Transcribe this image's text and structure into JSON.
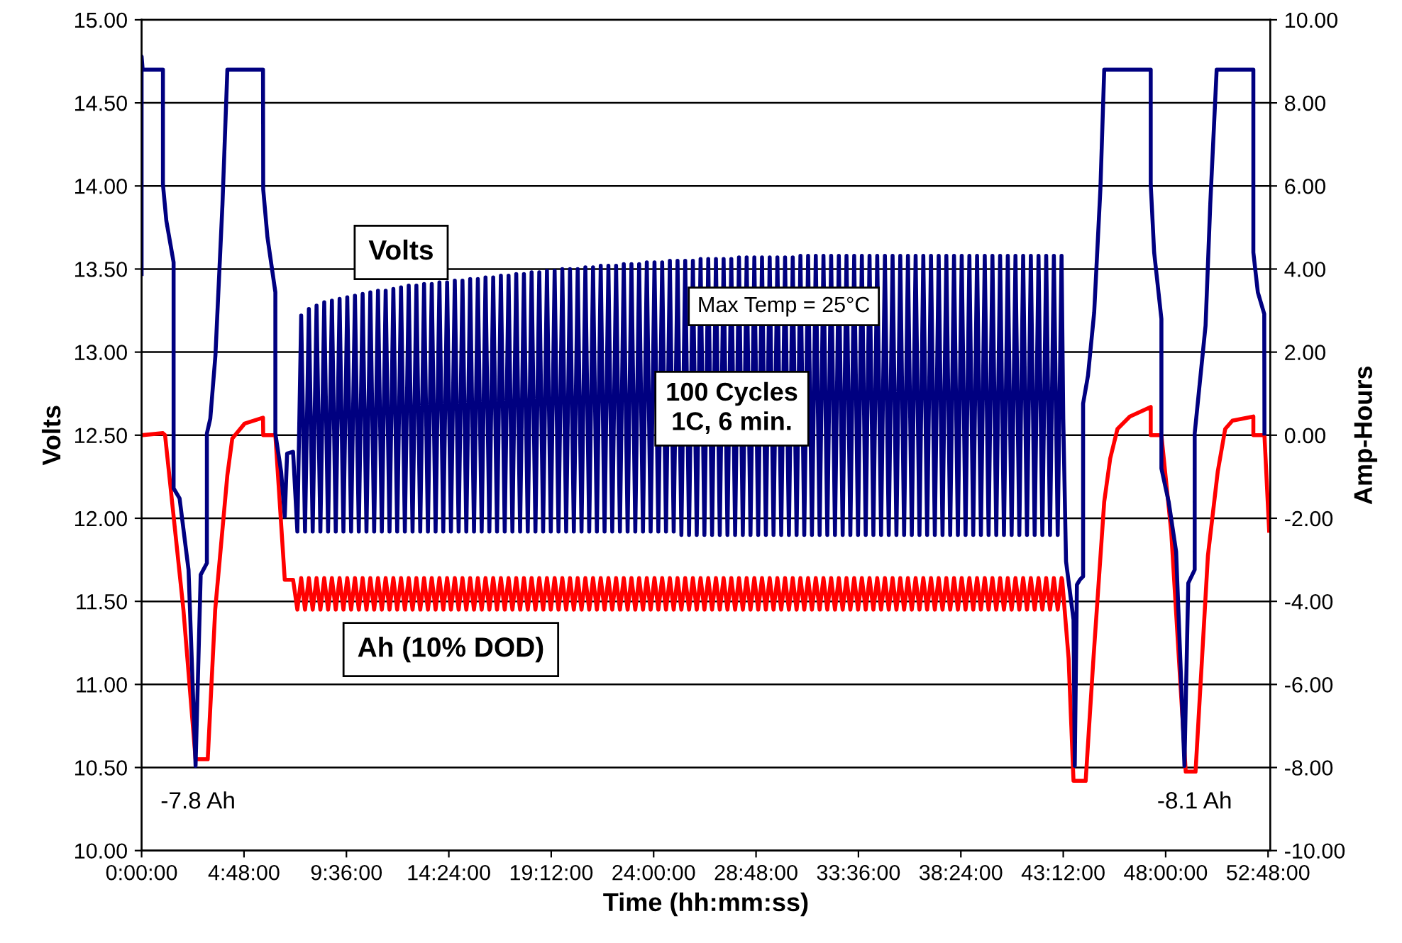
{
  "chart_data": {
    "type": "line",
    "xlabel": "Time (hh:mm:ss)",
    "ylabel": "Volts",
    "y2label": "Amp-Hours",
    "xlim": [
      0,
      52.9
    ],
    "xticks": [
      {
        "value": 0,
        "label": "0:00:00"
      },
      {
        "value": 4.8,
        "label": "4:48:00"
      },
      {
        "value": 9.6,
        "label": "9:36:00"
      },
      {
        "value": 14.4,
        "label": "14:24:00"
      },
      {
        "value": 19.2,
        "label": "19:12:00"
      },
      {
        "value": 24,
        "label": "24:00:00"
      },
      {
        "value": 28.8,
        "label": "28:48:00"
      },
      {
        "value": 33.6,
        "label": "33:36:00"
      },
      {
        "value": 38.4,
        "label": "38:24:00"
      },
      {
        "value": 43.2,
        "label": "43:12:00"
      },
      {
        "value": 48,
        "label": "48:00:00"
      },
      {
        "value": 52.8,
        "label": "52:48:00"
      }
    ],
    "ylim": [
      10,
      15
    ],
    "yticks": [
      {
        "value": 10,
        "label": "10.00"
      },
      {
        "value": 10.5,
        "label": "10.50"
      },
      {
        "value": 11,
        "label": "11.00"
      },
      {
        "value": 11.5,
        "label": "11.50"
      },
      {
        "value": 12,
        "label": "12.00"
      },
      {
        "value": 12.5,
        "label": "12.50"
      },
      {
        "value": 13,
        "label": "13.00"
      },
      {
        "value": 13.5,
        "label": "13.50"
      },
      {
        "value": 14,
        "label": "14.00"
      },
      {
        "value": 14.5,
        "label": "14.50"
      },
      {
        "value": 15,
        "label": "15.00"
      }
    ],
    "y2lim": [
      -10,
      10
    ],
    "y2ticks": [
      {
        "value": -10,
        "label": "-10.00"
      },
      {
        "value": -8,
        "label": "-8.00"
      },
      {
        "value": -6,
        "label": "-6.00"
      },
      {
        "value": -4,
        "label": "-4.00"
      },
      {
        "value": -2,
        "label": "-2.00"
      },
      {
        "value": 0,
        "label": "0.00"
      },
      {
        "value": 2,
        "label": "2.00"
      },
      {
        "value": 4,
        "label": "4.00"
      },
      {
        "value": 6,
        "label": "6.00"
      },
      {
        "value": 8,
        "label": "8.00"
      },
      {
        "value": 10,
        "label": "10.00"
      }
    ],
    "grid": "y",
    "legend": false,
    "marker": "none",
    "line_style": "solid",
    "annotations": [
      "Max Temp = 25°C",
      "100 Cycles\n1C, 6 min.",
      "-7.8 Ah",
      "-8.1 Ah"
    ],
    "series": [
      {
        "name": "Volts",
        "color": "#000080",
        "x": [
          0,
          0,
          0.05,
          1.0,
          1.0,
          1.16,
          1.5,
          1.5,
          1.78,
          2.2,
          2.53,
          2.77,
          3.06,
          3.06,
          3.22,
          3.46,
          3.79,
          4.02,
          5.69,
          5.7,
          5.9,
          6.27,
          6.27,
          6.54,
          6.71,
          6.82,
          7.1,
          7.3,
          7.48,
          7.66,
          7.84,
          8.02,
          8.2,
          8.38,
          8.56,
          8.74,
          8.92,
          9.1,
          9.28,
          9.46,
          9.64,
          9.82,
          10.0,
          10.18,
          10.36,
          10.54,
          10.72,
          10.9,
          11.08,
          11.26,
          11.44,
          11.62,
          11.8,
          11.98,
          12.16,
          12.34,
          12.52,
          12.7,
          12.88,
          13.06,
          13.24,
          13.42,
          13.6,
          13.78,
          13.96,
          14.14,
          14.32,
          14.5,
          14.68,
          14.86,
          15.04,
          15.22,
          15.4,
          15.58,
          15.76,
          15.94,
          16.12,
          16.3,
          16.48,
          16.66,
          16.84,
          17.02,
          17.2,
          17.38,
          17.56,
          17.74,
          17.92,
          18.1,
          18.28,
          18.46,
          18.64,
          18.82,
          19.0,
          19.18,
          19.36,
          19.54,
          19.72,
          19.9,
          20.08,
          20.26,
          20.44,
          20.62,
          20.8,
          20.98,
          21.16,
          21.34,
          21.52,
          21.7,
          21.88,
          22.06,
          22.24,
          22.42,
          22.6,
          22.78,
          22.96,
          23.14,
          23.32,
          23.5,
          23.68,
          23.86,
          24.04,
          24.22,
          24.4,
          24.58,
          24.76,
          24.94,
          25.12,
          25.3,
          25.48,
          25.66,
          25.84,
          26.02,
          26.2,
          26.38,
          26.56,
          26.74,
          26.92,
          27.1,
          27.28,
          27.46,
          27.64,
          27.82,
          28.0,
          28.18,
          28.36,
          28.54,
          28.72,
          28.9,
          29.08,
          29.26,
          29.44,
          29.62,
          29.8,
          29.98,
          30.16,
          30.34,
          30.52,
          30.7,
          30.88,
          31.06,
          31.24,
          31.42,
          31.6,
          31.78,
          31.96,
          32.14,
          32.32,
          32.5,
          32.68,
          32.86,
          33.04,
          33.22,
          33.4,
          33.58,
          33.76,
          33.94,
          34.12,
          34.3,
          34.48,
          34.66,
          34.84,
          35.02,
          35.2,
          35.38,
          35.56,
          35.74,
          35.92,
          36.1,
          36.28,
          36.46,
          36.64,
          36.82,
          37.0,
          37.18,
          37.36,
          37.54,
          37.72,
          37.9,
          38.08,
          38.26,
          38.44,
          38.62,
          38.8,
          38.98,
          39.16,
          39.34,
          39.52,
          39.7,
          39.88,
          40.06,
          40.24,
          40.42,
          40.6,
          40.78,
          40.96,
          41.14,
          41.32,
          41.5,
          41.68,
          41.86,
          42.04,
          42.22,
          42.4,
          42.58,
          42.76,
          42.94,
          43.12,
          43.2,
          43.33,
          43.68,
          43.74,
          43.84,
          43.98,
          44.13,
          44.13,
          44.36,
          44.65,
          44.94,
          45.12,
          47.3,
          47.3,
          47.46,
          47.8,
          47.8,
          48.14,
          48.49,
          48.88,
          49.06,
          49.36,
          49.36,
          49.87,
          50.09,
          50.39,
          52.11,
          52.11,
          52.32,
          52.62,
          52.63
        ],
        "values": [
          13.47,
          14.78,
          14.7,
          14.7,
          14.01,
          13.79,
          13.54,
          12.18,
          12.12,
          11.69,
          10.51,
          11.66,
          11.73,
          12.51,
          12.6,
          12.98,
          13.89,
          14.7,
          14.7,
          13.98,
          13.69,
          13.36,
          12.51,
          12.28,
          12.01,
          12.39,
          12.4,
          11.92,
          13.22,
          11.92,
          13.26,
          11.92,
          13.28,
          11.92,
          13.3,
          11.92,
          13.31,
          11.92,
          13.32,
          11.92,
          13.33,
          11.92,
          13.34,
          11.92,
          13.35,
          11.92,
          13.36,
          11.92,
          13.37,
          11.92,
          13.37,
          11.92,
          13.38,
          11.92,
          13.39,
          11.92,
          13.4,
          11.92,
          13.4,
          11.92,
          13.41,
          11.92,
          13.41,
          11.92,
          13.42,
          11.92,
          13.42,
          11.92,
          13.43,
          11.92,
          13.43,
          11.92,
          13.44,
          11.92,
          13.44,
          11.92,
          13.45,
          11.92,
          13.45,
          11.92,
          13.46,
          11.92,
          13.46,
          11.92,
          13.47,
          11.92,
          13.47,
          11.92,
          13.48,
          11.92,
          13.48,
          11.92,
          13.49,
          11.92,
          13.49,
          11.92,
          13.5,
          11.92,
          13.5,
          11.92,
          13.5,
          11.92,
          13.51,
          11.92,
          13.51,
          11.92,
          13.52,
          11.92,
          13.52,
          11.92,
          13.52,
          11.92,
          13.53,
          11.92,
          13.53,
          11.92,
          13.53,
          11.92,
          13.54,
          11.92,
          13.54,
          11.92,
          13.54,
          11.92,
          13.55,
          11.92,
          13.55,
          11.9,
          13.55,
          11.9,
          13.55,
          11.9,
          13.56,
          11.9,
          13.56,
          11.9,
          13.56,
          11.9,
          13.56,
          11.9,
          13.56,
          11.9,
          13.57,
          11.9,
          13.57,
          11.9,
          13.57,
          11.9,
          13.57,
          11.9,
          13.57,
          11.9,
          13.57,
          11.9,
          13.57,
          11.9,
          13.57,
          11.9,
          13.58,
          11.9,
          13.58,
          11.9,
          13.58,
          11.9,
          13.58,
          11.9,
          13.58,
          11.9,
          13.58,
          11.9,
          13.58,
          11.9,
          13.58,
          11.9,
          13.58,
          11.9,
          13.58,
          11.9,
          13.58,
          11.9,
          13.58,
          11.9,
          13.58,
          11.9,
          13.58,
          11.9,
          13.58,
          11.9,
          13.58,
          11.9,
          13.58,
          11.9,
          13.58,
          11.9,
          13.58,
          11.9,
          13.58,
          11.9,
          13.58,
          11.9,
          13.58,
          11.9,
          13.58,
          11.9,
          13.58,
          11.9,
          13.58,
          11.9,
          13.58,
          11.9,
          13.58,
          11.9,
          13.58,
          11.9,
          13.58,
          11.9,
          13.58,
          11.9,
          13.58,
          11.9,
          13.58,
          11.9,
          13.58,
          11.9,
          13.58,
          11.9,
          13.58,
          12.6,
          11.74,
          11.39,
          10.51,
          11.6,
          11.63,
          11.65,
          12.69,
          12.86,
          13.24,
          13.98,
          14.7,
          14.7,
          14.01,
          13.6,
          13.2,
          12.3,
          12.1,
          11.8,
          10.51,
          11.61,
          11.69,
          12.51,
          13.16,
          13.89,
          14.7,
          14.7,
          13.6,
          13.36,
          13.23,
          12.51
        ]
      },
      {
        "name": "Ah (10% DOD)",
        "color": "#ff0000",
        "axis": "y2",
        "x": [
          0,
          1.0,
          1.1,
          1.96,
          2.53,
          3.1,
          3.45,
          4.02,
          4.25,
          4.83,
          5.69,
          5.7,
          6.27,
          6.71,
          7.1,
          7.3,
          7.48,
          7.66,
          7.84,
          8.02,
          8.2,
          8.38,
          8.56,
          8.74,
          8.92,
          9.1,
          9.28,
          9.46,
          9.64,
          9.82,
          10.0,
          10.18,
          10.36,
          10.54,
          10.72,
          10.9,
          11.08,
          11.26,
          11.44,
          11.62,
          11.8,
          11.98,
          12.16,
          12.34,
          12.52,
          12.7,
          12.88,
          13.06,
          13.24,
          13.42,
          13.6,
          13.78,
          13.96,
          14.14,
          14.32,
          14.5,
          14.68,
          14.86,
          15.04,
          15.22,
          15.4,
          15.58,
          15.76,
          15.94,
          16.12,
          16.3,
          16.48,
          16.66,
          16.84,
          17.02,
          17.2,
          17.38,
          17.56,
          17.74,
          17.92,
          18.1,
          18.28,
          18.46,
          18.64,
          18.82,
          19.0,
          19.18,
          19.36,
          19.54,
          19.72,
          19.9,
          20.08,
          20.26,
          20.44,
          20.62,
          20.8,
          20.98,
          21.16,
          21.34,
          21.52,
          21.7,
          21.88,
          22.06,
          22.24,
          22.42,
          22.6,
          22.78,
          22.96,
          23.14,
          23.32,
          23.5,
          23.68,
          23.86,
          24.04,
          24.22,
          24.4,
          24.58,
          24.76,
          24.94,
          25.12,
          25.3,
          25.48,
          25.66,
          25.84,
          26.02,
          26.2,
          26.38,
          26.56,
          26.74,
          26.92,
          27.1,
          27.28,
          27.46,
          27.64,
          27.82,
          28.0,
          28.18,
          28.36,
          28.54,
          28.72,
          28.9,
          29.08,
          29.26,
          29.44,
          29.62,
          29.8,
          29.98,
          30.16,
          30.34,
          30.52,
          30.7,
          30.88,
          31.06,
          31.24,
          31.42,
          31.6,
          31.78,
          31.96,
          32.14,
          32.32,
          32.5,
          32.68,
          32.86,
          33.04,
          33.22,
          33.4,
          33.58,
          33.76,
          33.94,
          34.12,
          34.3,
          34.48,
          34.66,
          34.84,
          35.02,
          35.2,
          35.38,
          35.56,
          35.74,
          35.92,
          36.1,
          36.28,
          36.46,
          36.64,
          36.82,
          37.0,
          37.18,
          37.36,
          37.54,
          37.72,
          37.9,
          38.08,
          38.26,
          38.44,
          38.62,
          38.8,
          38.98,
          39.16,
          39.34,
          39.52,
          39.7,
          39.88,
          40.06,
          40.24,
          40.42,
          40.6,
          40.78,
          40.96,
          41.14,
          41.32,
          41.5,
          41.68,
          41.86,
          42.04,
          42.22,
          42.4,
          42.58,
          42.76,
          42.94,
          43.12,
          43.15,
          43.45,
          43.68,
          44.25,
          44.6,
          45.12,
          45.4,
          45.74,
          46.32,
          47.3,
          47.3,
          47.8,
          48.26,
          48.94,
          49.4,
          49.98,
          50.44,
          50.79,
          51.13,
          52.11,
          52.11,
          52.63,
          52.85
        ],
        "values": [
          0,
          0.05,
          0,
          -4.2,
          -7.8,
          -7.8,
          -4.2,
          -0.96,
          -0.08,
          0.28,
          0.42,
          0,
          0,
          -3.48,
          -3.48,
          -4.2,
          -3.44,
          -4.2,
          -3.44,
          -4.2,
          -3.44,
          -4.2,
          -3.44,
          -4.2,
          -3.44,
          -4.2,
          -3.44,
          -4.2,
          -3.44,
          -4.2,
          -3.44,
          -4.2,
          -3.44,
          -4.2,
          -3.44,
          -4.2,
          -3.44,
          -4.2,
          -3.44,
          -4.2,
          -3.44,
          -4.2,
          -3.44,
          -4.2,
          -3.44,
          -4.2,
          -3.44,
          -4.2,
          -3.44,
          -4.2,
          -3.44,
          -4.2,
          -3.44,
          -4.2,
          -3.44,
          -4.2,
          -3.44,
          -4.2,
          -3.44,
          -4.2,
          -3.44,
          -4.2,
          -3.44,
          -4.2,
          -3.44,
          -4.2,
          -3.44,
          -4.2,
          -3.44,
          -4.2,
          -3.44,
          -4.2,
          -3.44,
          -4.2,
          -3.44,
          -4.2,
          -3.44,
          -4.2,
          -3.44,
          -4.2,
          -3.44,
          -4.2,
          -3.44,
          -4.2,
          -3.44,
          -4.2,
          -3.44,
          -4.2,
          -3.44,
          -4.2,
          -3.44,
          -4.2,
          -3.44,
          -4.2,
          -3.44,
          -4.2,
          -3.44,
          -4.2,
          -3.44,
          -4.2,
          -3.44,
          -4.2,
          -3.44,
          -4.2,
          -3.44,
          -4.2,
          -3.44,
          -4.2,
          -3.44,
          -4.2,
          -3.44,
          -4.2,
          -3.44,
          -4.2,
          -3.44,
          -4.2,
          -3.44,
          -4.2,
          -3.44,
          -4.2,
          -3.44,
          -4.2,
          -3.44,
          -4.2,
          -3.44,
          -4.2,
          -3.44,
          -4.2,
          -3.44,
          -4.2,
          -3.44,
          -4.2,
          -3.44,
          -4.2,
          -3.44,
          -4.2,
          -3.44,
          -4.2,
          -3.44,
          -4.2,
          -3.44,
          -4.2,
          -3.44,
          -4.2,
          -3.44,
          -4.2,
          -3.44,
          -4.2,
          -3.44,
          -4.2,
          -3.44,
          -4.2,
          -3.44,
          -4.2,
          -3.44,
          -4.2,
          -3.44,
          -4.2,
          -3.44,
          -4.2,
          -3.44,
          -4.2,
          -3.44,
          -4.2,
          -3.44,
          -4.2,
          -3.44,
          -4.2,
          -3.44,
          -4.2,
          -3.44,
          -4.2,
          -3.44,
          -4.2,
          -3.44,
          -4.2,
          -3.44,
          -4.2,
          -3.44,
          -4.2,
          -3.44,
          -4.2,
          -3.44,
          -4.2,
          -3.44,
          -4.2,
          -3.44,
          -4.2,
          -3.44,
          -4.2,
          -3.44,
          -4.2,
          -3.44,
          -4.2,
          -3.44,
          -4.2,
          -3.44,
          -4.2,
          -3.44,
          -4.2,
          -3.44,
          -4.2,
          -3.44,
          -4.2,
          -3.44,
          -4.2,
          -3.44,
          -4.2,
          -3.44,
          -4.2,
          -3.44,
          -4.2,
          -3.44,
          -4.2,
          -3.44,
          -3.48,
          -5.37,
          -8.32,
          -8.32,
          -5.49,
          -1.6,
          -0.56,
          0.15,
          0.45,
          0.68,
          0,
          0,
          -2.32,
          -8.1,
          -8.1,
          -2.9,
          -0.88,
          0.15,
          0.35,
          0.45,
          0,
          0,
          -2.3
        ]
      }
    ]
  }
}
